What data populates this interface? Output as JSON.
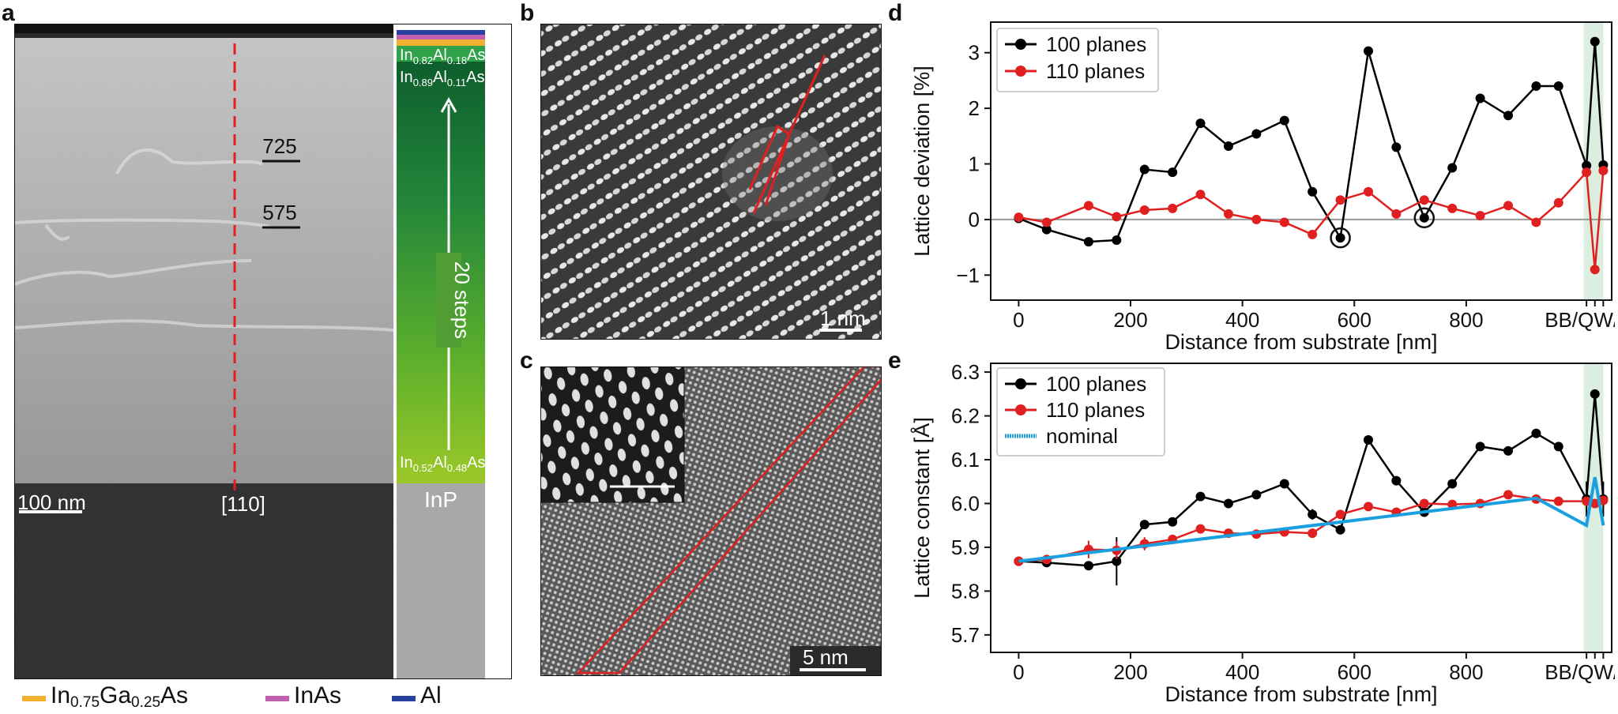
{
  "panels": {
    "a": {
      "label": "a",
      "scale_bar": "100 nm",
      "direction": "[110]",
      "step_labels": [
        "725",
        "575"
      ],
      "stack": {
        "top_layer_1": {
          "pre": "In",
          "sub1": "0.82",
          "mid": "Al",
          "sub2": "0.18",
          "post": "As"
        },
        "top_layer_2": {
          "pre": "In",
          "sub1": "0.89",
          "mid": "Al",
          "sub2": "0.11",
          "post": "As"
        },
        "bottom_layer": {
          "pre": "In",
          "sub1": "0.52",
          "mid": "Al",
          "sub2": "0.48",
          "post": "As"
        },
        "steps_label": "20 steps",
        "substrate": "InP"
      },
      "bottom_legend": [
        {
          "pre": "In",
          "sub1": "0.75",
          "mid": "Ga",
          "sub2": "0.25",
          "post": "As",
          "color": "#f0b030"
        },
        {
          "text": "InAs",
          "color": "#c060b0"
        },
        {
          "text": "Al",
          "color": "#2840a0"
        }
      ]
    },
    "b": {
      "label": "b",
      "scale_bar": "1 nm"
    },
    "c": {
      "label": "c",
      "scale_bar": "5 nm"
    },
    "d": {
      "label": "d"
    },
    "e": {
      "label": "e"
    }
  },
  "chart_data": [
    {
      "id": "d",
      "type": "line",
      "title": "",
      "xlabel": "Distance from substrate [nm]",
      "ylabel": "Lattice deviation [%]",
      "xlim": [
        -50,
        1060
      ],
      "ylim": [
        -1.45,
        3.55
      ],
      "xticks": [
        0,
        200,
        400,
        600,
        800
      ],
      "xtick_labels": [
        "0",
        "200",
        "400",
        "600",
        "800"
      ],
      "extra_xtick_label": "BB/QW/TB",
      "yticks": [
        -1,
        0,
        1,
        2,
        3
      ],
      "ytick_labels": [
        "−1",
        "0",
        "1",
        "2",
        "3"
      ],
      "highlight_band": [
        1010,
        1045
      ],
      "reference_line": 0,
      "series": [
        {
          "name": "100 planes",
          "color": "#000000",
          "x": [
            0,
            50,
            125,
            175,
            225,
            275,
            325,
            375,
            425,
            475,
            525,
            575,
            625,
            675,
            725,
            775,
            825,
            875,
            925,
            965,
            1015,
            1030,
            1045
          ],
          "y": [
            0.02,
            -0.18,
            -0.4,
            -0.37,
            0.9,
            0.85,
            1.73,
            1.32,
            1.54,
            1.78,
            0.5,
            -0.33,
            3.03,
            1.3,
            0.03,
            0.93,
            2.18,
            1.87,
            2.4,
            2.4,
            0.97,
            3.2,
            0.98
          ]
        },
        {
          "name": "110 planes",
          "color": "#e02020",
          "x": [
            0,
            50,
            125,
            175,
            225,
            275,
            325,
            375,
            425,
            475,
            525,
            575,
            625,
            675,
            725,
            775,
            825,
            875,
            925,
            965,
            1015,
            1030,
            1045
          ],
          "y": [
            0.04,
            -0.05,
            0.25,
            0.05,
            0.17,
            0.2,
            0.45,
            0.1,
            0.0,
            -0.05,
            -0.27,
            0.35,
            0.5,
            0.1,
            0.35,
            0.2,
            0.07,
            0.25,
            -0.05,
            0.3,
            0.85,
            -0.9,
            0.88
          ]
        }
      ],
      "circled_points": [
        {
          "x": 575,
          "y": -0.33
        },
        {
          "x": 725,
          "y": 0.03
        }
      ]
    },
    {
      "id": "e",
      "type": "line",
      "title": "",
      "xlabel": "Distance from substrate [nm]",
      "ylabel": "Lattice constant [Å]",
      "xlim": [
        -50,
        1060
      ],
      "ylim": [
        5.66,
        6.32
      ],
      "xticks": [
        0,
        200,
        400,
        600,
        800
      ],
      "xtick_labels": [
        "0",
        "200",
        "400",
        "600",
        "800"
      ],
      "extra_xtick_label": "BB/QW/TB",
      "yticks": [
        5.7,
        5.8,
        5.9,
        6.0,
        6.1,
        6.2,
        6.3
      ],
      "ytick_labels": [
        "5.7",
        "5.8",
        "5.9",
        "6.0",
        "6.1",
        "6.2",
        "6.3"
      ],
      "highlight_band": [
        1010,
        1045
      ],
      "series": [
        {
          "name": "100 planes",
          "color": "#000000",
          "x": [
            0,
            50,
            125,
            175,
            225,
            275,
            325,
            375,
            425,
            475,
            525,
            575,
            625,
            675,
            725,
            775,
            825,
            875,
            925,
            965,
            1015,
            1030,
            1045
          ],
          "y": [
            5.868,
            5.865,
            5.858,
            5.868,
            5.952,
            5.958,
            6.016,
            6.0,
            6.02,
            6.045,
            5.975,
            5.94,
            6.145,
            6.052,
            5.98,
            6.045,
            6.13,
            6.12,
            6.16,
            6.13,
            6.01,
            6.25,
            6.01
          ],
          "err": [
            0,
            0,
            0,
            0.055,
            0,
            0,
            0,
            0,
            0.01,
            0,
            0.012,
            0,
            0,
            0,
            0,
            0,
            0.01,
            0,
            0,
            0,
            0.04,
            0,
            0.04
          ]
        },
        {
          "name": "110 planes",
          "color": "#e02020",
          "x": [
            0,
            50,
            125,
            175,
            225,
            275,
            325,
            375,
            425,
            475,
            525,
            575,
            625,
            675,
            725,
            775,
            825,
            875,
            925,
            965,
            1015,
            1030,
            1045
          ],
          "y": [
            5.868,
            5.872,
            5.895,
            5.893,
            5.908,
            5.918,
            5.942,
            5.932,
            5.93,
            5.935,
            5.932,
            5.975,
            5.993,
            5.98,
            6.0,
            5.998,
            6.0,
            6.02,
            6.01,
            6.005,
            6.005,
            6.0,
            6.007
          ],
          "err": [
            0,
            0,
            0.02,
            0.02,
            0.015,
            0,
            0,
            0,
            0,
            0,
            0,
            0,
            0,
            0,
            0,
            0,
            0,
            0,
            0,
            0,
            0,
            0,
            0
          ]
        },
        {
          "name": "nominal",
          "color": "#1aa0e0",
          "x": [
            0,
            925,
            1015,
            1030,
            1045
          ],
          "y": [
            5.868,
            6.012,
            5.95,
            6.06,
            5.95
          ],
          "err": [
            0,
            0,
            0,
            0,
            0
          ]
        }
      ]
    }
  ]
}
